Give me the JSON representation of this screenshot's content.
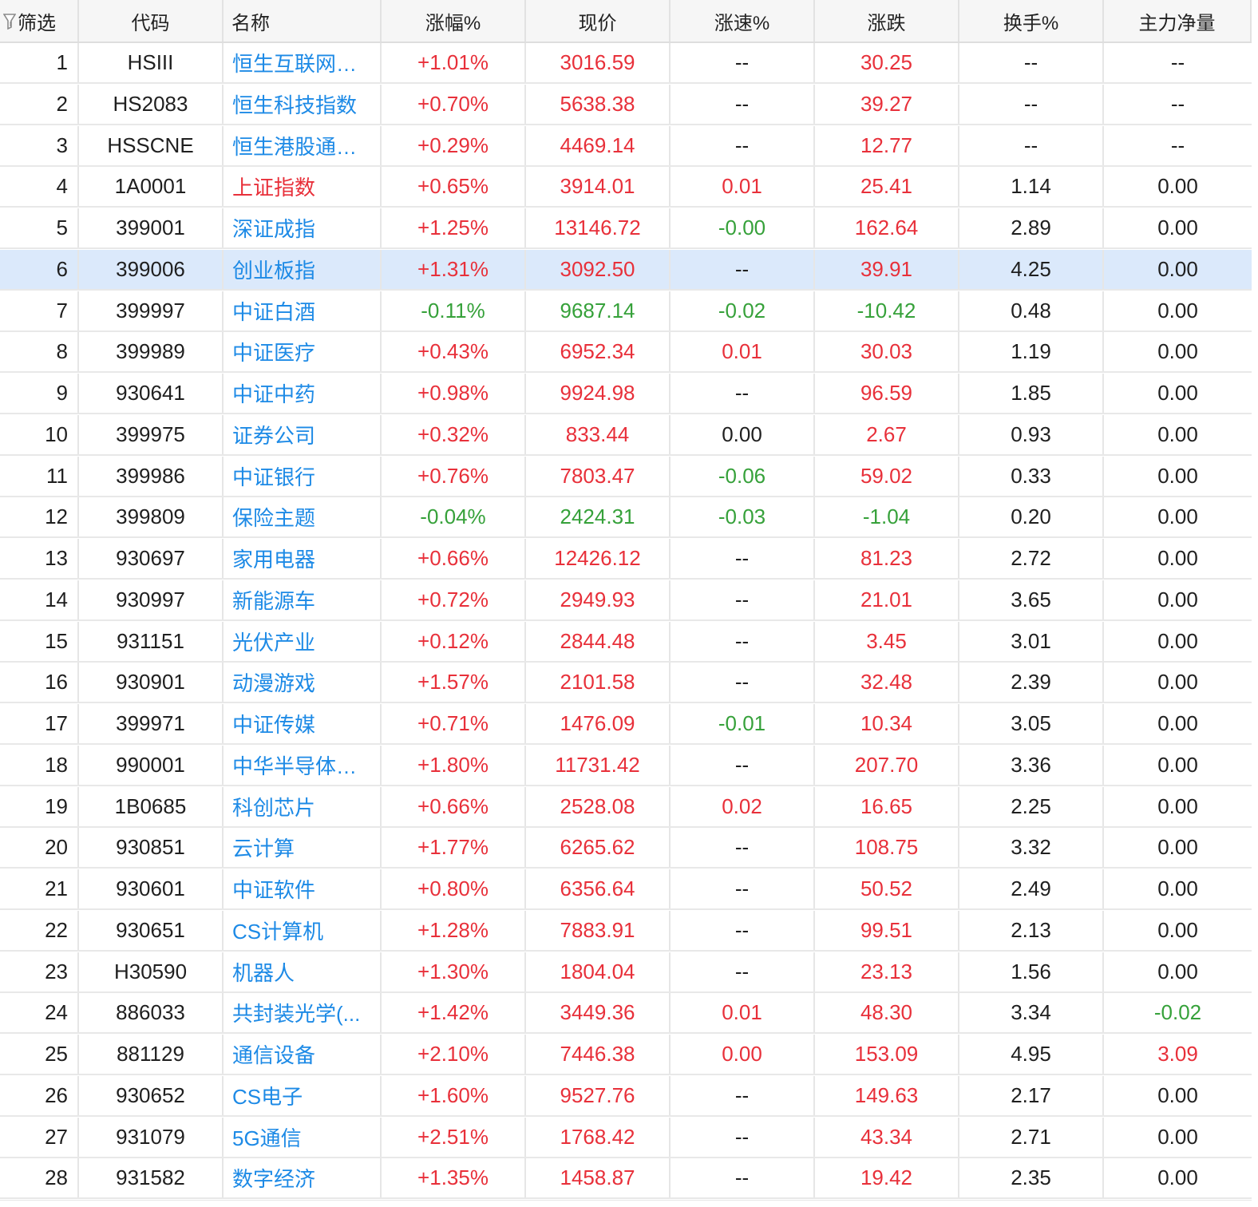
{
  "header": {
    "filter": "筛选",
    "code": "代码",
    "name": "名称",
    "change_pct": "涨幅%",
    "price": "现价",
    "speed": "涨速%",
    "change": "涨跌",
    "turnover": "换手%",
    "net_flow": "主力净量"
  },
  "colors": {
    "up": "#e8303a",
    "down": "#36a13a",
    "link": "#1d8ae6",
    "selected_row": "#dbe9fb"
  },
  "selected_index": 6,
  "rows": [
    {
      "idx": "1",
      "code": "HSIII",
      "name": "恒生互联网科...",
      "name_color": "blue",
      "chg": "+1.01%",
      "chg_c": "red",
      "px": "3016.59",
      "px_c": "red",
      "spd": "--",
      "spd_c": "black",
      "diff": "30.25",
      "diff_c": "red",
      "turn": "--",
      "flow": "--",
      "flow_c": "black"
    },
    {
      "idx": "2",
      "code": "HS2083",
      "name": "恒生科技指数",
      "name_color": "blue",
      "chg": "+0.70%",
      "chg_c": "red",
      "px": "5638.38",
      "px_c": "red",
      "spd": "--",
      "spd_c": "black",
      "diff": "39.27",
      "diff_c": "red",
      "turn": "--",
      "flow": "--",
      "flow_c": "black"
    },
    {
      "idx": "3",
      "code": "HSSCNE",
      "name": "恒生港股通新...",
      "name_color": "blue",
      "chg": "+0.29%",
      "chg_c": "red",
      "px": "4469.14",
      "px_c": "red",
      "spd": "--",
      "spd_c": "black",
      "diff": "12.77",
      "diff_c": "red",
      "turn": "--",
      "flow": "--",
      "flow_c": "black"
    },
    {
      "idx": "4",
      "code": "1A0001",
      "name": "上证指数",
      "name_color": "red",
      "chg": "+0.65%",
      "chg_c": "red",
      "px": "3914.01",
      "px_c": "red",
      "spd": "0.01",
      "spd_c": "red",
      "diff": "25.41",
      "diff_c": "red",
      "turn": "1.14",
      "flow": "0.00",
      "flow_c": "black"
    },
    {
      "idx": "5",
      "code": "399001",
      "name": "深证成指",
      "name_color": "blue",
      "chg": "+1.25%",
      "chg_c": "red",
      "px": "13146.72",
      "px_c": "red",
      "spd": "-0.00",
      "spd_c": "green",
      "diff": "162.64",
      "diff_c": "red",
      "turn": "2.89",
      "flow": "0.00",
      "flow_c": "black"
    },
    {
      "idx": "6",
      "code": "399006",
      "name": "创业板指",
      "name_color": "blue",
      "chg": "+1.31%",
      "chg_c": "red",
      "px": "3092.50",
      "px_c": "red",
      "spd": "--",
      "spd_c": "black",
      "diff": "39.91",
      "diff_c": "red",
      "turn": "4.25",
      "flow": "0.00",
      "flow_c": "black"
    },
    {
      "idx": "7",
      "code": "399997",
      "name": "中证白酒",
      "name_color": "blue",
      "chg": "-0.11%",
      "chg_c": "green",
      "px": "9687.14",
      "px_c": "green",
      "spd": "-0.02",
      "spd_c": "green",
      "diff": "-10.42",
      "diff_c": "green",
      "turn": "0.48",
      "flow": "0.00",
      "flow_c": "black"
    },
    {
      "idx": "8",
      "code": "399989",
      "name": "中证医疗",
      "name_color": "blue",
      "chg": "+0.43%",
      "chg_c": "red",
      "px": "6952.34",
      "px_c": "red",
      "spd": "0.01",
      "spd_c": "red",
      "diff": "30.03",
      "diff_c": "red",
      "turn": "1.19",
      "flow": "0.00",
      "flow_c": "black"
    },
    {
      "idx": "9",
      "code": "930641",
      "name": "中证中药",
      "name_color": "blue",
      "chg": "+0.98%",
      "chg_c": "red",
      "px": "9924.98",
      "px_c": "red",
      "spd": "--",
      "spd_c": "black",
      "diff": "96.59",
      "diff_c": "red",
      "turn": "1.85",
      "flow": "0.00",
      "flow_c": "black"
    },
    {
      "idx": "10",
      "code": "399975",
      "name": "证券公司",
      "name_color": "blue",
      "chg": "+0.32%",
      "chg_c": "red",
      "px": "833.44",
      "px_c": "red",
      "spd": "0.00",
      "spd_c": "black",
      "diff": "2.67",
      "diff_c": "red",
      "turn": "0.93",
      "flow": "0.00",
      "flow_c": "black"
    },
    {
      "idx": "11",
      "code": "399986",
      "name": "中证银行",
      "name_color": "blue",
      "chg": "+0.76%",
      "chg_c": "red",
      "px": "7803.47",
      "px_c": "red",
      "spd": "-0.06",
      "spd_c": "green",
      "diff": "59.02",
      "diff_c": "red",
      "turn": "0.33",
      "flow": "0.00",
      "flow_c": "black"
    },
    {
      "idx": "12",
      "code": "399809",
      "name": "保险主题",
      "name_color": "blue",
      "chg": "-0.04%",
      "chg_c": "green",
      "px": "2424.31",
      "px_c": "green",
      "spd": "-0.03",
      "spd_c": "green",
      "diff": "-1.04",
      "diff_c": "green",
      "turn": "0.20",
      "flow": "0.00",
      "flow_c": "black"
    },
    {
      "idx": "13",
      "code": "930697",
      "name": "家用电器",
      "name_color": "blue",
      "chg": "+0.66%",
      "chg_c": "red",
      "px": "12426.12",
      "px_c": "red",
      "spd": "--",
      "spd_c": "black",
      "diff": "81.23",
      "diff_c": "red",
      "turn": "2.72",
      "flow": "0.00",
      "flow_c": "black"
    },
    {
      "idx": "14",
      "code": "930997",
      "name": "新能源车",
      "name_color": "blue",
      "chg": "+0.72%",
      "chg_c": "red",
      "px": "2949.93",
      "px_c": "red",
      "spd": "--",
      "spd_c": "black",
      "diff": "21.01",
      "diff_c": "red",
      "turn": "3.65",
      "flow": "0.00",
      "flow_c": "black"
    },
    {
      "idx": "15",
      "code": "931151",
      "name": "光伏产业",
      "name_color": "blue",
      "chg": "+0.12%",
      "chg_c": "red",
      "px": "2844.48",
      "px_c": "red",
      "spd": "--",
      "spd_c": "black",
      "diff": "3.45",
      "diff_c": "red",
      "turn": "3.01",
      "flow": "0.00",
      "flow_c": "black"
    },
    {
      "idx": "16",
      "code": "930901",
      "name": "动漫游戏",
      "name_color": "blue",
      "chg": "+1.57%",
      "chg_c": "red",
      "px": "2101.58",
      "px_c": "red",
      "spd": "--",
      "spd_c": "black",
      "diff": "32.48",
      "diff_c": "red",
      "turn": "2.39",
      "flow": "0.00",
      "flow_c": "black"
    },
    {
      "idx": "17",
      "code": "399971",
      "name": "中证传媒",
      "name_color": "blue",
      "chg": "+0.71%",
      "chg_c": "red",
      "px": "1476.09",
      "px_c": "red",
      "spd": "-0.01",
      "spd_c": "green",
      "diff": "10.34",
      "diff_c": "red",
      "turn": "3.05",
      "flow": "0.00",
      "flow_c": "black"
    },
    {
      "idx": "18",
      "code": "990001",
      "name": "中华半导体芯...",
      "name_color": "blue",
      "chg": "+1.80%",
      "chg_c": "red",
      "px": "11731.42",
      "px_c": "red",
      "spd": "--",
      "spd_c": "black",
      "diff": "207.70",
      "diff_c": "red",
      "turn": "3.36",
      "flow": "0.00",
      "flow_c": "black"
    },
    {
      "idx": "19",
      "code": "1B0685",
      "name": "科创芯片",
      "name_color": "blue",
      "chg": "+0.66%",
      "chg_c": "red",
      "px": "2528.08",
      "px_c": "red",
      "spd": "0.02",
      "spd_c": "red",
      "diff": "16.65",
      "diff_c": "red",
      "turn": "2.25",
      "flow": "0.00",
      "flow_c": "black"
    },
    {
      "idx": "20",
      "code": "930851",
      "name": "云计算",
      "name_color": "blue",
      "chg": "+1.77%",
      "chg_c": "red",
      "px": "6265.62",
      "px_c": "red",
      "spd": "--",
      "spd_c": "black",
      "diff": "108.75",
      "diff_c": "red",
      "turn": "3.32",
      "flow": "0.00",
      "flow_c": "black"
    },
    {
      "idx": "21",
      "code": "930601",
      "name": "中证软件",
      "name_color": "blue",
      "chg": "+0.80%",
      "chg_c": "red",
      "px": "6356.64",
      "px_c": "red",
      "spd": "--",
      "spd_c": "black",
      "diff": "50.52",
      "diff_c": "red",
      "turn": "2.49",
      "flow": "0.00",
      "flow_c": "black"
    },
    {
      "idx": "22",
      "code": "930651",
      "name": "CS计算机",
      "name_color": "blue",
      "chg": "+1.28%",
      "chg_c": "red",
      "px": "7883.91",
      "px_c": "red",
      "spd": "--",
      "spd_c": "black",
      "diff": "99.51",
      "diff_c": "red",
      "turn": "2.13",
      "flow": "0.00",
      "flow_c": "black"
    },
    {
      "idx": "23",
      "code": "H30590",
      "name": "机器人",
      "name_color": "blue",
      "chg": "+1.30%",
      "chg_c": "red",
      "px": "1804.04",
      "px_c": "red",
      "spd": "--",
      "spd_c": "black",
      "diff": "23.13",
      "diff_c": "red",
      "turn": "1.56",
      "flow": "0.00",
      "flow_c": "black"
    },
    {
      "idx": "24",
      "code": "886033",
      "name": "共封装光学(...",
      "name_color": "blue",
      "chg": "+1.42%",
      "chg_c": "red",
      "px": "3449.36",
      "px_c": "red",
      "spd": "0.01",
      "spd_c": "red",
      "diff": "48.30",
      "diff_c": "red",
      "turn": "3.34",
      "flow": "-0.02",
      "flow_c": "green"
    },
    {
      "idx": "25",
      "code": "881129",
      "name": "通信设备",
      "name_color": "blue",
      "chg": "+2.10%",
      "chg_c": "red",
      "px": "7446.38",
      "px_c": "red",
      "spd": "0.00",
      "spd_c": "red",
      "diff": "153.09",
      "diff_c": "red",
      "turn": "4.95",
      "flow": "3.09",
      "flow_c": "red"
    },
    {
      "idx": "26",
      "code": "930652",
      "name": "CS电子",
      "name_color": "blue",
      "chg": "+1.60%",
      "chg_c": "red",
      "px": "9527.76",
      "px_c": "red",
      "spd": "--",
      "spd_c": "black",
      "diff": "149.63",
      "diff_c": "red",
      "turn": "2.17",
      "flow": "0.00",
      "flow_c": "black"
    },
    {
      "idx": "27",
      "code": "931079",
      "name": "5G通信",
      "name_color": "blue",
      "chg": "+2.51%",
      "chg_c": "red",
      "px": "1768.42",
      "px_c": "red",
      "spd": "--",
      "spd_c": "black",
      "diff": "43.34",
      "diff_c": "red",
      "turn": "2.71",
      "flow": "0.00",
      "flow_c": "black"
    },
    {
      "idx": "28",
      "code": "931582",
      "name": "数字经济",
      "name_color": "blue",
      "chg": "+1.35%",
      "chg_c": "red",
      "px": "1458.87",
      "px_c": "red",
      "spd": "--",
      "spd_c": "black",
      "diff": "19.42",
      "diff_c": "red",
      "turn": "2.35",
      "flow": "0.00",
      "flow_c": "black"
    }
  ]
}
